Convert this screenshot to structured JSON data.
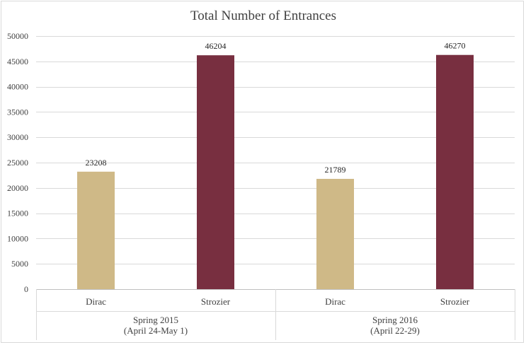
{
  "chart_data": {
    "type": "bar",
    "title": "Total Number of Entrances",
    "xlabel": "",
    "ylabel": "",
    "ylim": [
      0,
      50000
    ],
    "yticks": [
      0,
      5000,
      10000,
      15000,
      20000,
      25000,
      30000,
      35000,
      40000,
      45000,
      50000
    ],
    "grid": true,
    "legend": "none",
    "groups": [
      {
        "label_line1": "Spring 2015",
        "label_line2": "(April 24-May 1)"
      },
      {
        "label_line1": "Spring 2016",
        "label_line2": "(April 22-29)"
      }
    ],
    "bars": [
      {
        "category": "Dirac",
        "group": 0,
        "value": 23208
      },
      {
        "category": "Strozier",
        "group": 0,
        "value": 46204
      },
      {
        "category": "Dirac",
        "group": 1,
        "value": 21789
      },
      {
        "category": "Strozier",
        "group": 1,
        "value": 46270
      }
    ],
    "colors": {
      "Dirac": "#cfb987",
      "Strozier": "#782f40"
    }
  }
}
